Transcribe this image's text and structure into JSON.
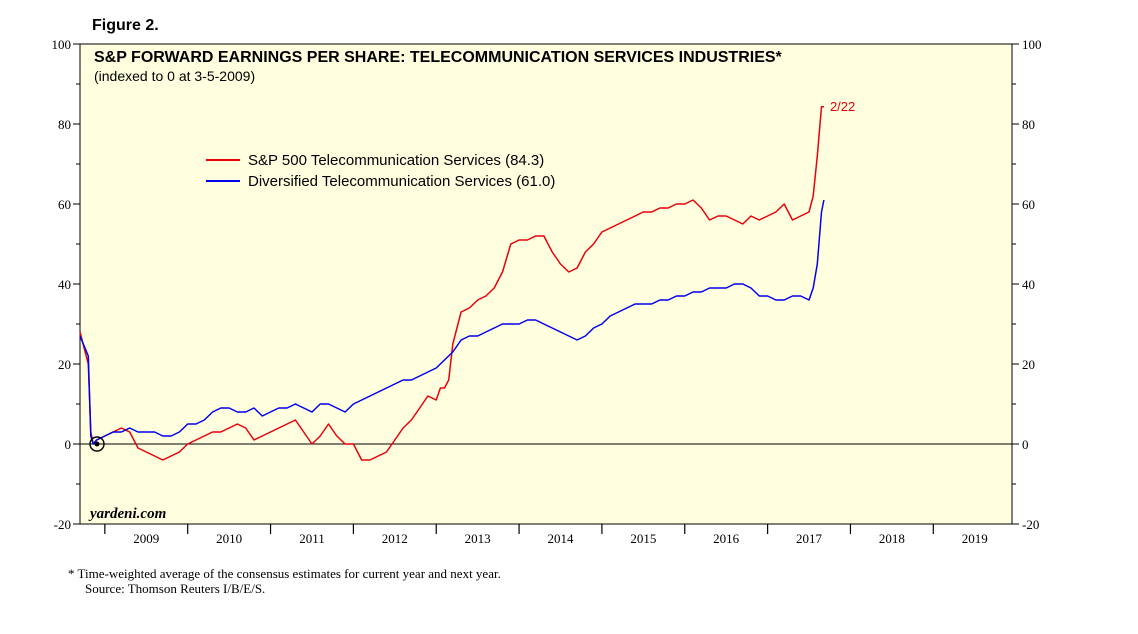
{
  "figure_label": "Figure 2.",
  "watermark": "yardeni.com",
  "footnote": {
    "line1": "*   Time-weighted average of the consensus estimates for current year and next year.",
    "line2": "Source: Thomson Reuters I/B/E/S."
  },
  "colors": {
    "panel_bg": "#ffffe0",
    "series_sp500": "#e8000b",
    "series_diversified": "#0000ee",
    "axis": "#000000"
  },
  "chart_data": {
    "type": "line",
    "title": "S&P FORWARD EARNINGS PER SHARE: TELECOMMUNICATION SERVICES INDUSTRIES*",
    "subtitle": "(indexed to 0 at 3-5-2009)",
    "end_annotation": "2/22",
    "xlabel": "",
    "ylabel": "",
    "ylim": [
      -20,
      100
    ],
    "xlim": [
      2008.7,
      2019.95
    ],
    "y_ticks": [
      -20,
      0,
      20,
      40,
      60,
      80,
      100
    ],
    "y_tick_labels": [
      "-20",
      "0",
      "20",
      "40",
      "60",
      "80",
      "100"
    ],
    "x_tick_labels": [
      "2009",
      "2010",
      "2011",
      "2012",
      "2013",
      "2014",
      "2015",
      "2016",
      "2017",
      "2018",
      "2019"
    ],
    "legend_position": "upper-left",
    "series": [
      {
        "name": "S&P 500 Telecommunication Services (84.3)",
        "color": "#e8000b",
        "x": [
          2008.7,
          2008.8,
          2008.83,
          2008.86,
          2008.9,
          2009.0,
          2009.1,
          2009.2,
          2009.3,
          2009.4,
          2009.5,
          2009.6,
          2009.7,
          2009.8,
          2009.9,
          2010.0,
          2010.1,
          2010.2,
          2010.3,
          2010.4,
          2010.5,
          2010.6,
          2010.7,
          2010.8,
          2010.9,
          2011.0,
          2011.1,
          2011.2,
          2011.3,
          2011.4,
          2011.5,
          2011.6,
          2011.7,
          2011.8,
          2011.9,
          2012.0,
          2012.1,
          2012.2,
          2012.3,
          2012.4,
          2012.5,
          2012.6,
          2012.7,
          2012.8,
          2012.9,
          2013.0,
          2013.05,
          2013.1,
          2013.15,
          2013.2,
          2013.3,
          2013.4,
          2013.5,
          2013.6,
          2013.7,
          2013.8,
          2013.9,
          2014.0,
          2014.1,
          2014.2,
          2014.3,
          2014.4,
          2014.5,
          2014.6,
          2014.7,
          2014.8,
          2014.9,
          2015.0,
          2015.1,
          2015.2,
          2015.3,
          2015.4,
          2015.5,
          2015.6,
          2015.7,
          2015.8,
          2015.9,
          2016.0,
          2016.1,
          2016.2,
          2016.3,
          2016.4,
          2016.5,
          2016.6,
          2016.7,
          2016.8,
          2016.9,
          2017.0,
          2017.1,
          2017.2,
          2017.3,
          2017.4,
          2017.5,
          2017.55,
          2017.6,
          2017.65,
          2017.68
        ],
        "values": [
          28,
          20,
          3,
          0,
          1,
          2,
          3,
          4,
          3,
          -1,
          -2,
          -3,
          -4,
          -3,
          -2,
          0,
          1,
          2,
          3,
          3,
          4,
          5,
          4,
          1,
          2,
          3,
          4,
          5,
          6,
          3,
          0,
          2,
          5,
          2,
          0,
          0,
          -4,
          -4,
          -3,
          -2,
          1,
          4,
          6,
          9,
          12,
          11,
          14,
          14,
          16,
          25,
          33,
          34,
          36,
          37,
          39,
          43,
          50,
          51,
          51,
          52,
          52,
          48,
          45,
          43,
          44,
          48,
          50,
          53,
          54,
          55,
          56,
          57,
          58,
          58,
          59,
          59,
          60,
          60,
          61,
          59,
          56,
          57,
          57,
          56,
          55,
          57,
          56,
          57,
          58,
          60,
          56,
          57,
          58,
          62,
          72,
          84.3,
          84.3
        ]
      },
      {
        "name": "Diversified Telecommunication Services (61.0)",
        "color": "#0000ee",
        "x": [
          2008.7,
          2008.8,
          2008.83,
          2008.86,
          2008.9,
          2009.0,
          2009.1,
          2009.2,
          2009.3,
          2009.4,
          2009.5,
          2009.6,
          2009.7,
          2009.8,
          2009.9,
          2010.0,
          2010.1,
          2010.2,
          2010.3,
          2010.4,
          2010.5,
          2010.6,
          2010.7,
          2010.8,
          2010.9,
          2011.0,
          2011.1,
          2011.2,
          2011.3,
          2011.4,
          2011.5,
          2011.6,
          2011.7,
          2011.8,
          2011.9,
          2012.0,
          2012.1,
          2012.2,
          2012.3,
          2012.4,
          2012.5,
          2012.6,
          2012.7,
          2012.8,
          2012.9,
          2013.0,
          2013.1,
          2013.2,
          2013.3,
          2013.4,
          2013.5,
          2013.6,
          2013.7,
          2013.8,
          2013.9,
          2014.0,
          2014.1,
          2014.2,
          2014.3,
          2014.4,
          2014.5,
          2014.6,
          2014.7,
          2014.8,
          2014.9,
          2015.0,
          2015.1,
          2015.2,
          2015.3,
          2015.4,
          2015.5,
          2015.6,
          2015.7,
          2015.8,
          2015.9,
          2016.0,
          2016.1,
          2016.2,
          2016.3,
          2016.4,
          2016.5,
          2016.6,
          2016.7,
          2016.8,
          2016.9,
          2017.0,
          2017.1,
          2017.2,
          2017.3,
          2017.4,
          2017.5,
          2017.55,
          2017.6,
          2017.65,
          2017.68
        ],
        "values": [
          27,
          22,
          2,
          0,
          1,
          2,
          3,
          3,
          4,
          3,
          3,
          3,
          2,
          2,
          3,
          5,
          5,
          6,
          8,
          9,
          9,
          8,
          8,
          9,
          7,
          8,
          9,
          9,
          10,
          9,
          8,
          10,
          10,
          9,
          8,
          10,
          11,
          12,
          13,
          14,
          15,
          16,
          16,
          17,
          18,
          19,
          21,
          23,
          26,
          27,
          27,
          28,
          29,
          30,
          30,
          30,
          31,
          31,
          30,
          29,
          28,
          27,
          26,
          27,
          29,
          30,
          32,
          33,
          34,
          35,
          35,
          35,
          36,
          36,
          37,
          37,
          38,
          38,
          39,
          39,
          39,
          40,
          40,
          39,
          37,
          37,
          36,
          36,
          37,
          37,
          36,
          39,
          45,
          58,
          61.0
        ]
      }
    ]
  }
}
